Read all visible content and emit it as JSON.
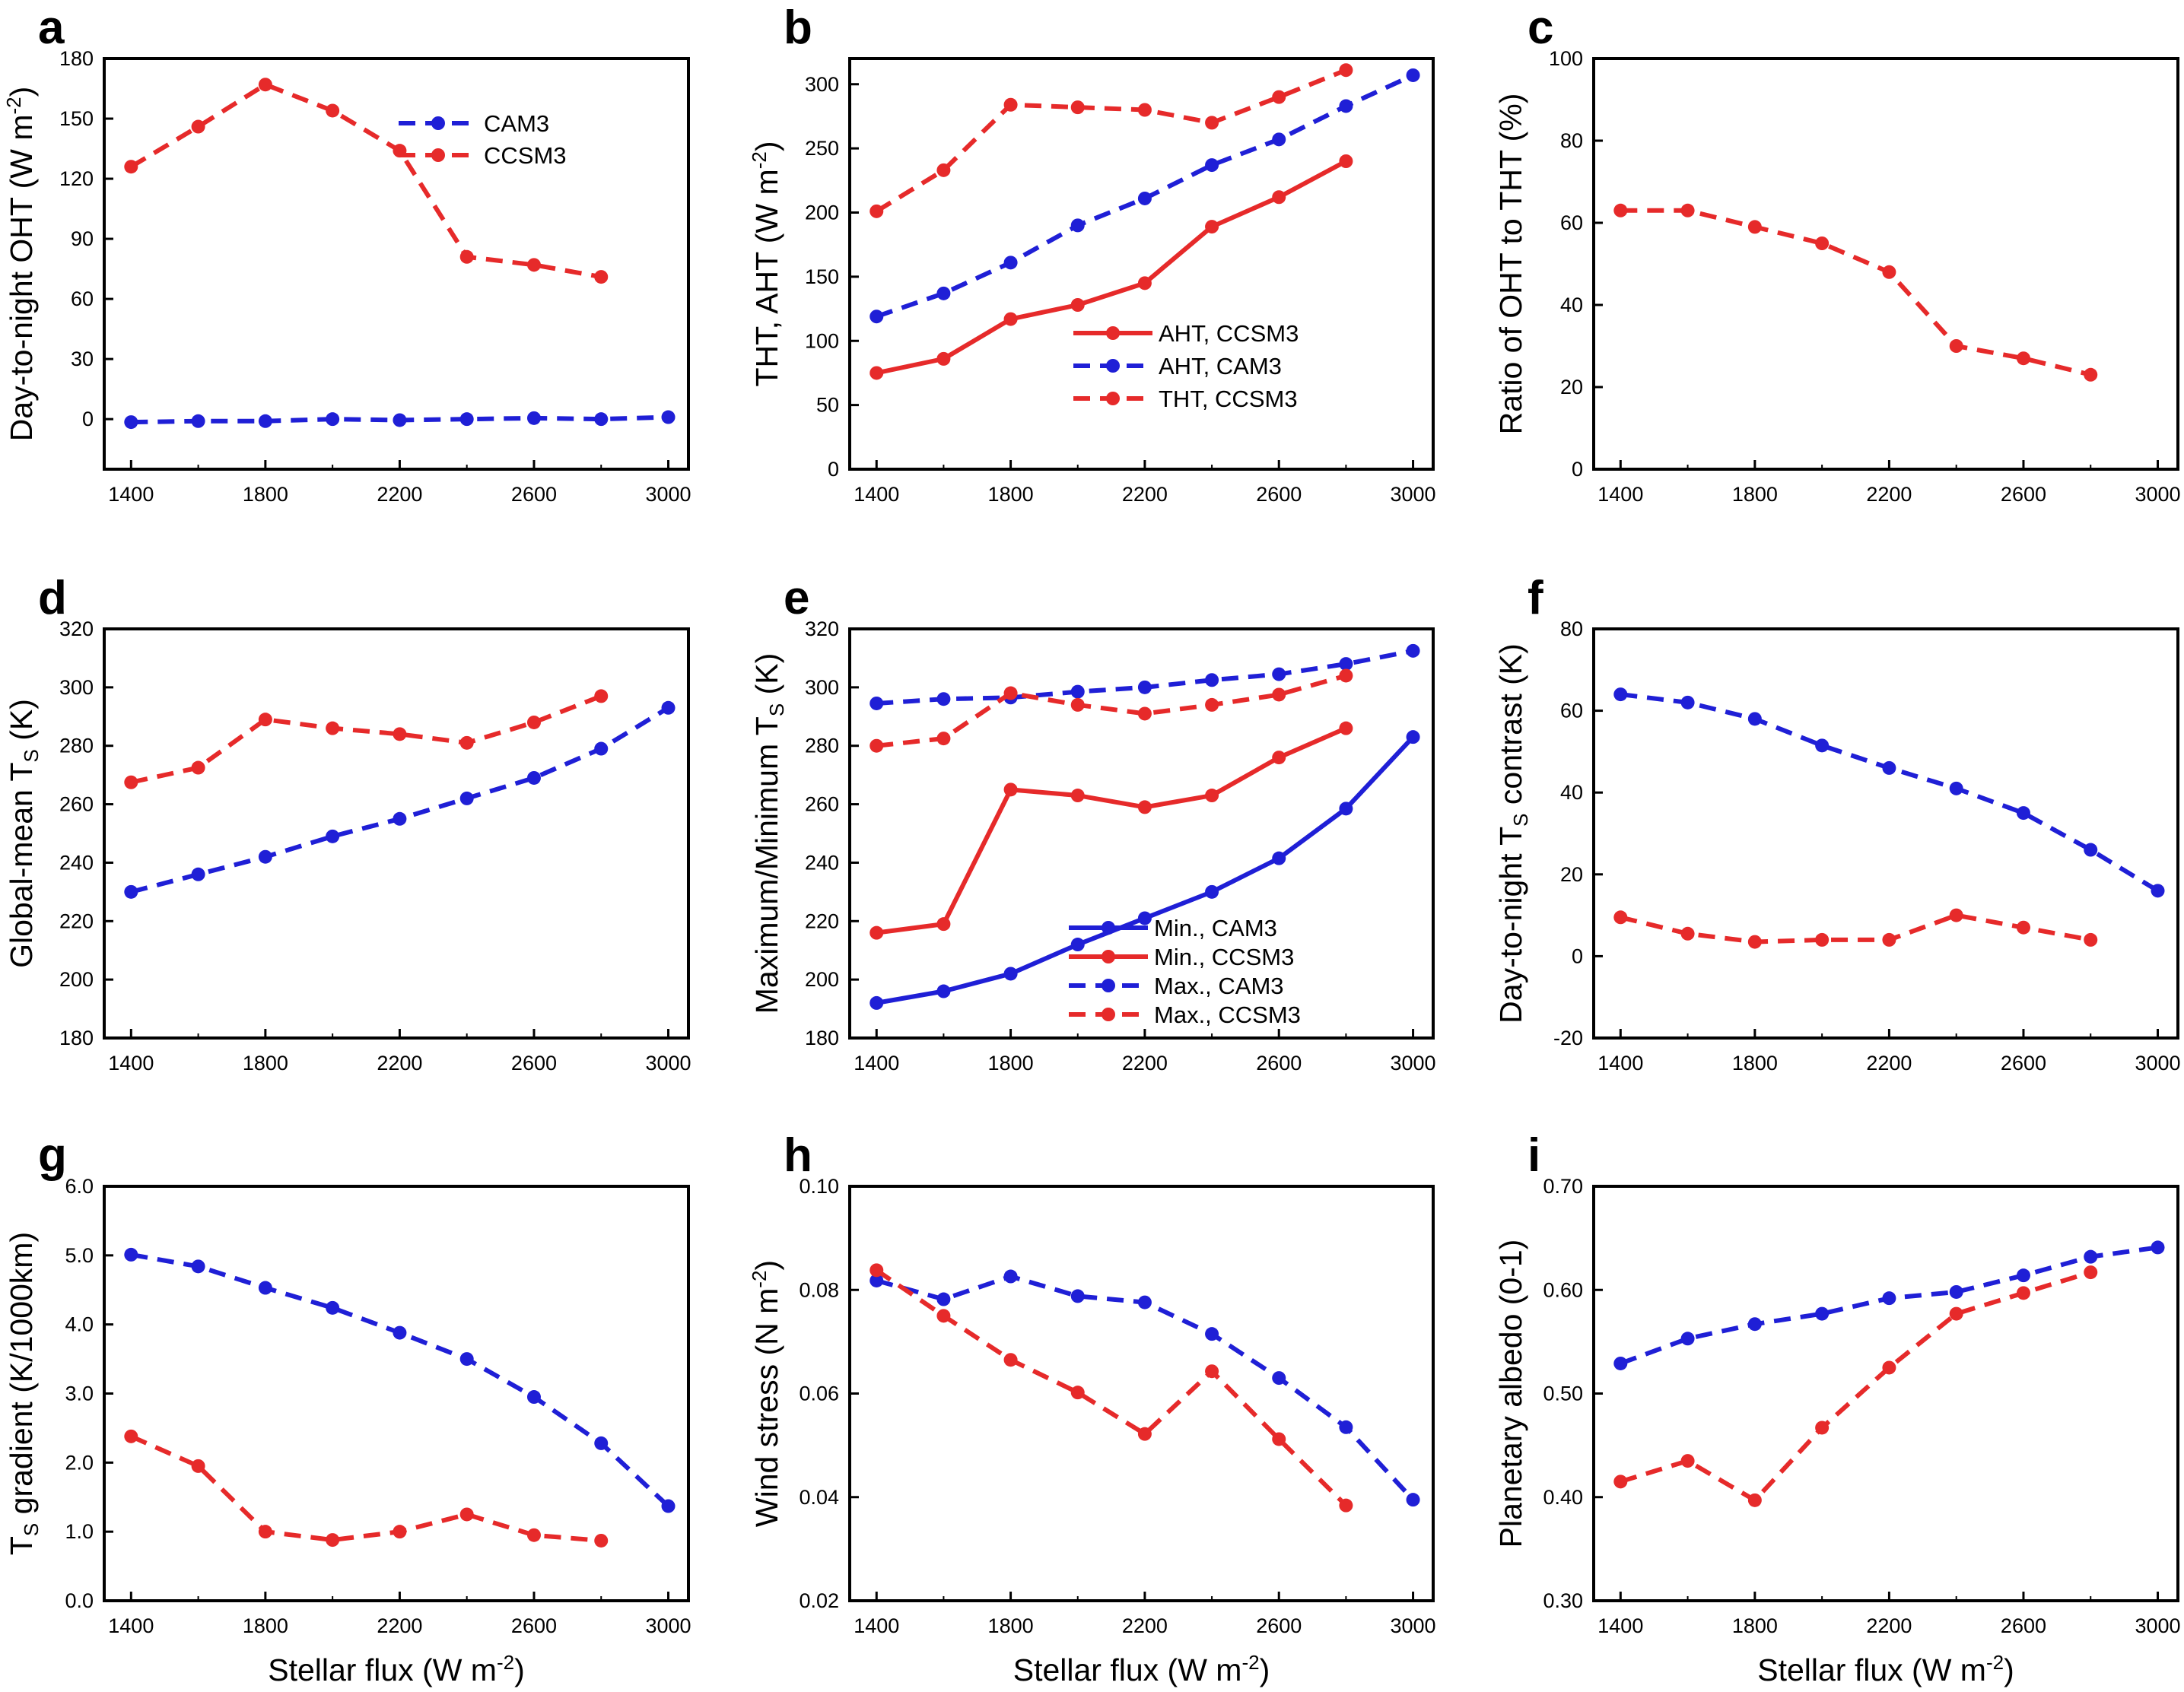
{
  "colors": {
    "blue": "#1f1fd6",
    "red": "#e62a2a"
  },
  "x_axis_title": {
    "main": "Stellar flux (W m",
    "sup": "-2",
    "close": ")"
  },
  "chart_data": [
    {
      "panel": "a",
      "type": "line",
      "ylabel": {
        "main": "Day-to-night OHT (W m",
        "sup": "-2",
        "close": ")"
      },
      "x_ticks": [
        "1400",
        "1800",
        "2200",
        "2600",
        "3000"
      ],
      "y_ticks": [
        "0",
        "30",
        "60",
        "90",
        "120",
        "150",
        "180"
      ],
      "xlim": [
        1320,
        3060
      ],
      "ylim": [
        -25,
        180
      ],
      "legend_position": "top-right",
      "series": [
        {
          "name": "CAM3",
          "color": "blue",
          "dash": true,
          "x": [
            1400,
            1600,
            1800,
            2000,
            2200,
            2400,
            2600,
            2800,
            3000
          ],
          "y": [
            -1.5,
            -1,
            -1,
            0,
            -0.5,
            0,
            0.5,
            0,
            1
          ]
        },
        {
          "name": "CCSM3",
          "color": "red",
          "dash": true,
          "x": [
            1400,
            1600,
            1800,
            2000,
            2200,
            2400,
            2600,
            2800
          ],
          "y": [
            126,
            146,
            167,
            154,
            134,
            81,
            77,
            71
          ]
        }
      ]
    },
    {
      "panel": "b",
      "type": "line",
      "ylabel": {
        "main": "THT, AHT (W m",
        "sup": "-2",
        "close": ")"
      },
      "x_ticks": [
        "1400",
        "1800",
        "2200",
        "2600",
        "3000"
      ],
      "y_ticks": [
        "0",
        "50",
        "100",
        "150",
        "200",
        "250",
        "300"
      ],
      "xlim": [
        1320,
        3060
      ],
      "ylim": [
        0,
        320
      ],
      "legend_position": "bottom-right",
      "series": [
        {
          "name": "AHT, CCSM3",
          "color": "red",
          "dash": false,
          "x": [
            1400,
            1600,
            1800,
            2000,
            2200,
            2400,
            2600,
            2800
          ],
          "y": [
            75,
            86,
            117,
            128,
            145,
            189,
            212,
            240
          ]
        },
        {
          "name": "AHT, CAM3",
          "color": "blue",
          "dash": true,
          "x": [
            1400,
            1600,
            1800,
            2000,
            2200,
            2400,
            2600,
            2800,
            3000
          ],
          "y": [
            119,
            137,
            161,
            190,
            211,
            237,
            257,
            283,
            307
          ]
        },
        {
          "name": "THT, CCSM3",
          "color": "red",
          "dash": true,
          "x": [
            1400,
            1600,
            1800,
            2000,
            2200,
            2400,
            2600,
            2800
          ],
          "y": [
            201,
            233,
            284,
            282,
            280,
            270,
            290,
            311
          ]
        }
      ]
    },
    {
      "panel": "c",
      "type": "line",
      "ylabel": {
        "main": "Ratio of OHT to THT (%)"
      },
      "x_ticks": [
        "1400",
        "1800",
        "2200",
        "2600",
        "3000"
      ],
      "y_ticks": [
        "0",
        "20",
        "40",
        "60",
        "80",
        "100"
      ],
      "xlim": [
        1320,
        3060
      ],
      "ylim": [
        0,
        100
      ],
      "series": [
        {
          "name": "CCSM3",
          "color": "red",
          "dash": true,
          "x": [
            1400,
            1600,
            1800,
            2000,
            2200,
            2400,
            2600,
            2800
          ],
          "y": [
            63,
            63,
            59,
            55,
            48,
            30,
            27,
            23
          ]
        }
      ]
    },
    {
      "panel": "d",
      "type": "line",
      "ylabel": {
        "main": "Global-mean T",
        "sub": "S",
        "close": " (K)"
      },
      "x_ticks": [
        "1400",
        "1800",
        "2200",
        "2600",
        "3000"
      ],
      "y_ticks": [
        "180",
        "200",
        "220",
        "240",
        "260",
        "280",
        "300",
        "320"
      ],
      "xlim": [
        1320,
        3060
      ],
      "ylim": [
        180,
        320
      ],
      "series": [
        {
          "name": "CCSM3",
          "color": "red",
          "dash": true,
          "x": [
            1400,
            1600,
            1800,
            2000,
            2200,
            2400,
            2600,
            2800
          ],
          "y": [
            267.5,
            272.5,
            289,
            286,
            284,
            281,
            288,
            297
          ]
        },
        {
          "name": "CAM3",
          "color": "blue",
          "dash": true,
          "x": [
            1400,
            1600,
            1800,
            2000,
            2200,
            2400,
            2600,
            2800,
            3000
          ],
          "y": [
            230,
            236,
            242,
            249,
            255,
            262,
            269,
            279,
            293
          ]
        }
      ]
    },
    {
      "panel": "e",
      "type": "line",
      "ylabel": {
        "main": "Maximum/Minimum T",
        "sub": "S",
        "close": " (K)"
      },
      "x_ticks": [
        "1400",
        "1800",
        "2200",
        "2600",
        "3000"
      ],
      "y_ticks": [
        "180",
        "200",
        "220",
        "240",
        "260",
        "280",
        "300",
        "320"
      ],
      "xlim": [
        1320,
        3060
      ],
      "ylim": [
        180,
        320
      ],
      "legend_position": "bottom-right",
      "series": [
        {
          "name": "Min., CAM3",
          "color": "blue",
          "dash": false,
          "x": [
            1400,
            1600,
            1800,
            2000,
            2200,
            2400,
            2600,
            2800,
            3000
          ],
          "y": [
            192,
            196,
            202,
            212,
            221,
            230,
            241.5,
            258.5,
            283
          ]
        },
        {
          "name": "Min., CCSM3",
          "color": "red",
          "dash": false,
          "x": [
            1400,
            1600,
            1800,
            2000,
            2200,
            2400,
            2600,
            2800
          ],
          "y": [
            216,
            219,
            265,
            263,
            259,
            263,
            276,
            286
          ]
        },
        {
          "name": "Max., CAM3",
          "color": "blue",
          "dash": true,
          "x": [
            1400,
            1600,
            1800,
            2000,
            2200,
            2400,
            2600,
            2800,
            3000
          ],
          "y": [
            294.5,
            296,
            296.5,
            298.5,
            300,
            302.5,
            304.5,
            308,
            312.5
          ]
        },
        {
          "name": "Max., CCSM3",
          "color": "red",
          "dash": true,
          "x": [
            1400,
            1600,
            1800,
            2000,
            2200,
            2400,
            2600,
            2800
          ],
          "y": [
            280,
            282.5,
            298,
            294,
            291,
            294,
            297.5,
            304
          ]
        }
      ]
    },
    {
      "panel": "f",
      "type": "line",
      "ylabel": {
        "main": "Day-to-night T",
        "sub": "S",
        "close": " contrast (K)"
      },
      "x_ticks": [
        "1400",
        "1800",
        "2200",
        "2600",
        "3000"
      ],
      "y_ticks": [
        "-20",
        "0",
        "20",
        "40",
        "60",
        "80"
      ],
      "xlim": [
        1320,
        3060
      ],
      "ylim": [
        -20,
        80
      ],
      "series": [
        {
          "name": "CAM3",
          "color": "blue",
          "dash": true,
          "x": [
            1400,
            1600,
            1800,
            2000,
            2200,
            2400,
            2600,
            2800,
            3000
          ],
          "y": [
            64,
            62,
            58,
            51.5,
            46,
            41,
            35,
            26,
            16
          ]
        },
        {
          "name": "CCSM3",
          "color": "red",
          "dash": true,
          "x": [
            1400,
            1600,
            1800,
            2000,
            2200,
            2400,
            2600,
            2800
          ],
          "y": [
            9.5,
            5.5,
            3.5,
            4,
            4,
            10,
            7,
            4
          ]
        }
      ]
    },
    {
      "panel": "g",
      "type": "line",
      "ylabel": {
        "main": "T",
        "sub": "S",
        "close": " gradient (K/1000km)"
      },
      "x_ticks": [
        "1400",
        "1800",
        "2200",
        "2600",
        "3000"
      ],
      "y_ticks": [
        "0.0",
        "1.0",
        "2.0",
        "3.0",
        "4.0",
        "5.0",
        "6.0"
      ],
      "xlim": [
        1320,
        3060
      ],
      "ylim": [
        0,
        6
      ],
      "series": [
        {
          "name": "CAM3",
          "color": "blue",
          "dash": true,
          "x": [
            1400,
            1600,
            1800,
            2000,
            2200,
            2400,
            2600,
            2800,
            3000
          ],
          "y": [
            5.01,
            4.84,
            4.53,
            4.24,
            3.88,
            3.5,
            2.95,
            2.28,
            1.37
          ]
        },
        {
          "name": "CCSM3",
          "color": "red",
          "dash": true,
          "x": [
            1400,
            1600,
            1800,
            2000,
            2200,
            2400,
            2600,
            2800
          ],
          "y": [
            2.38,
            1.95,
            1.0,
            0.88,
            1.0,
            1.25,
            0.95,
            0.87
          ]
        }
      ]
    },
    {
      "panel": "h",
      "type": "line",
      "ylabel": {
        "main": "Wind stress (N m",
        "sup": "-2",
        "close": ")"
      },
      "x_ticks": [
        "1400",
        "1800",
        "2200",
        "2600",
        "3000"
      ],
      "y_ticks": [
        "0.02",
        "0.04",
        "0.06",
        "0.08",
        "0.10"
      ],
      "xlim": [
        1320,
        3060
      ],
      "ylim": [
        0.02,
        0.1
      ],
      "series": [
        {
          "name": "CAM3",
          "color": "blue",
          "dash": true,
          "x": [
            1400,
            1600,
            1800,
            2000,
            2200,
            2400,
            2600,
            2800,
            3000
          ],
          "y": [
            0.0818,
            0.0782,
            0.0826,
            0.0788,
            0.0776,
            0.0715,
            0.063,
            0.0535,
            0.0395
          ]
        },
        {
          "name": "CCSM3",
          "color": "red",
          "dash": true,
          "x": [
            1400,
            1600,
            1800,
            2000,
            2200,
            2400,
            2600,
            2800
          ],
          "y": [
            0.0838,
            0.075,
            0.0665,
            0.0602,
            0.0522,
            0.0643,
            0.0512,
            0.0384
          ]
        }
      ]
    },
    {
      "panel": "i",
      "type": "line",
      "ylabel": {
        "main": "Planetary albedo (0-1)"
      },
      "x_ticks": [
        "1400",
        "1800",
        "2200",
        "2600",
        "3000"
      ],
      "y_ticks": [
        "0.30",
        "0.40",
        "0.50",
        "0.60",
        "0.70"
      ],
      "xlim": [
        1320,
        3060
      ],
      "ylim": [
        0.3,
        0.7
      ],
      "series": [
        {
          "name": "CAM3",
          "color": "blue",
          "dash": true,
          "x": [
            1400,
            1600,
            1800,
            2000,
            2200,
            2400,
            2600,
            2800,
            3000
          ],
          "y": [
            0.529,
            0.553,
            0.567,
            0.577,
            0.592,
            0.598,
            0.614,
            0.632,
            0.641
          ]
        },
        {
          "name": "CCSM3",
          "color": "red",
          "dash": true,
          "x": [
            1400,
            1600,
            1800,
            2000,
            2200,
            2400,
            2600,
            2800
          ],
          "y": [
            0.415,
            0.435,
            0.397,
            0.467,
            0.525,
            0.577,
            0.597,
            0.617
          ]
        }
      ]
    }
  ]
}
